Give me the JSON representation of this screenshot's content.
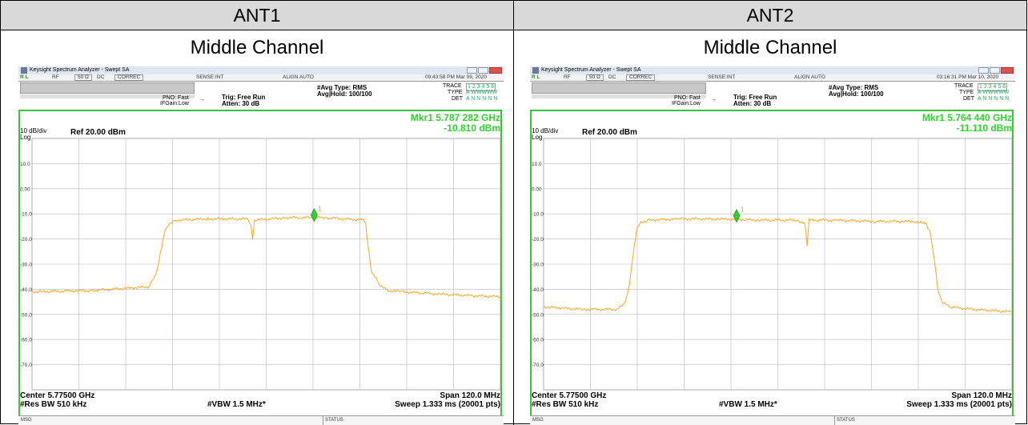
{
  "table": {
    "headers": [
      "ANT1",
      "ANT2"
    ],
    "subheaders": [
      "Middle Channel",
      "Middle Channel"
    ]
  },
  "colors": {
    "header_bg": "#d9d9d9",
    "trace": "#f5a623",
    "marker": "#2ed12e",
    "frame": "#3ac43a"
  },
  "panels": [
    {
      "window_title": "Keysight Spectrum Analyzer - Swept SA",
      "menubar": {
        "rl": "R L",
        "rf": "RF",
        "ohm": "50 Ω",
        "dc": "DC",
        "correc": "CORREC",
        "sense": "SENSE:INT",
        "align": "ALIGN AUTO",
        "datetime": "09:43:58 PM Mar 09, 2020"
      },
      "settings": {
        "pno": "PNO: Fast",
        "ifgain": "IFGain:Low",
        "trig": "Trig: Free Run",
        "atten": "Atten: 30 dB",
        "avg_type": "#Avg Type: RMS",
        "avg_hold": "Avg|Hold: 100/100"
      },
      "trace_info": {
        "trace_label": "TRACE",
        "trace_nums": "1 2 3 4 5 6",
        "type_label": "TYPE",
        "type_val": "A WWWWW",
        "det_label": "DET",
        "det_val": "A N N N N N"
      },
      "marker": {
        "freq": "Mkr1 5.787 282 GHz",
        "level": "-10.810 dBm",
        "label": "1",
        "freq_mhz": 5787.282,
        "level_dbm": -10.81
      },
      "scale": {
        "div": "10 dB/div",
        "log": "Log",
        "ref": "Ref 20.00 dBm"
      },
      "bottom": {
        "center": "Center 5.77500 GHz",
        "rbw": "#Res BW 510 kHz",
        "vbw": "#VBW 1.5 MHz*",
        "span": "Span 120.0 MHz",
        "sweep": "Sweep  1.333 ms (20001 pts)"
      },
      "status": {
        "msg": "MSG",
        "status": "STATUS"
      },
      "chart_data": {
        "type": "line",
        "y_ticks": [
          "10.0",
          "0.00",
          "-10.0",
          "-20.0",
          "-30.0",
          "-40.0",
          "-50.0",
          "-60.0",
          "-70.0"
        ],
        "xlim_mhz": [
          5715,
          5835
        ],
        "ylim_dbm": [
          -80,
          20
        ],
        "series": [
          {
            "x": [
              5715,
              5730,
              5745,
              5747,
              5749,
              5750,
              5752,
              5760,
              5770,
              5771,
              5771.5,
              5772,
              5780,
              5790,
              5800,
              5800.5,
              5801,
              5802,
              5804,
              5806,
              5810,
              5820,
              5835
            ],
            "y": [
              -41,
              -40.5,
              -39,
              -33,
              -17,
              -14,
              -12.5,
              -12,
              -12,
              -14,
              -20,
              -12.5,
              -11.5,
              -11.5,
              -12.5,
              -14,
              -22,
              -33,
              -38,
              -40.5,
              -41,
              -42,
              -43
            ]
          }
        ]
      }
    },
    {
      "window_title": "Keysight Spectrum Analyzer - Swept SA",
      "menubar": {
        "rl": "R L",
        "rf": "RF",
        "ohm": "50 Ω",
        "dc": "DC",
        "correc": "CORREC",
        "sense": "SENSE:INT",
        "align": "ALIGN AUTO",
        "datetime": "03:16:31 PM Mar 10, 2020"
      },
      "settings": {
        "pno": "PNO: Fast",
        "ifgain": "IFGain:Low",
        "trig": "Trig: Free Run",
        "atten": "Atten: 30 dB",
        "avg_type": "#Avg Type: RMS",
        "avg_hold": "Avg|Hold: 100/100"
      },
      "trace_info": {
        "trace_label": "TRACE",
        "trace_nums": "1 2 3 4 5 6",
        "type_label": "TYPE",
        "type_val": "A WWWWW",
        "det_label": "DET",
        "det_val": "A N N N N N"
      },
      "marker": {
        "freq": "Mkr1 5.764 440 GHz",
        "level": "-11.110 dBm",
        "label": "1",
        "freq_mhz": 5764.44,
        "level_dbm": -11.11
      },
      "scale": {
        "div": "10 dB/div",
        "log": "Log",
        "ref": "Ref 20.00 dBm"
      },
      "bottom": {
        "center": "Center 5.77500 GHz",
        "rbw": "#Res BW 510 kHz",
        "vbw": "#VBW 1.5 MHz*",
        "span": "Span 120.0 MHz",
        "sweep": "Sweep  1.333 ms (20001 pts)"
      },
      "status": {
        "msg": "MSG",
        "status": "STATUS"
      },
      "chart_data": {
        "type": "line",
        "y_ticks": [
          "10.0",
          "0.00",
          "-10.0",
          "-20.0",
          "-30.0",
          "-40.0",
          "-50.0",
          "-60.0",
          "-70.0"
        ],
        "xlim_mhz": [
          5715,
          5835
        ],
        "ylim_dbm": [
          -80,
          20
        ],
        "series": [
          {
            "x": [
              5715,
              5725,
              5734,
              5736,
              5737,
              5738,
              5739,
              5740,
              5742,
              5750,
              5760,
              5770,
              5780,
              5782,
              5782.5,
              5783,
              5790,
              5800,
              5810,
              5813,
              5814,
              5815,
              5816,
              5817,
              5819,
              5825,
              5835
            ],
            "y": [
              -47,
              -48,
              -48,
              -45,
              -38,
              -25,
              -15,
              -13.5,
              -12.5,
              -12,
              -12,
              -12.5,
              -12.5,
              -14,
              -23,
              -12.5,
              -12.5,
              -13,
              -13,
              -14,
              -17,
              -27,
              -40,
              -45,
              -47,
              -48,
              -49
            ]
          }
        ]
      }
    }
  ]
}
